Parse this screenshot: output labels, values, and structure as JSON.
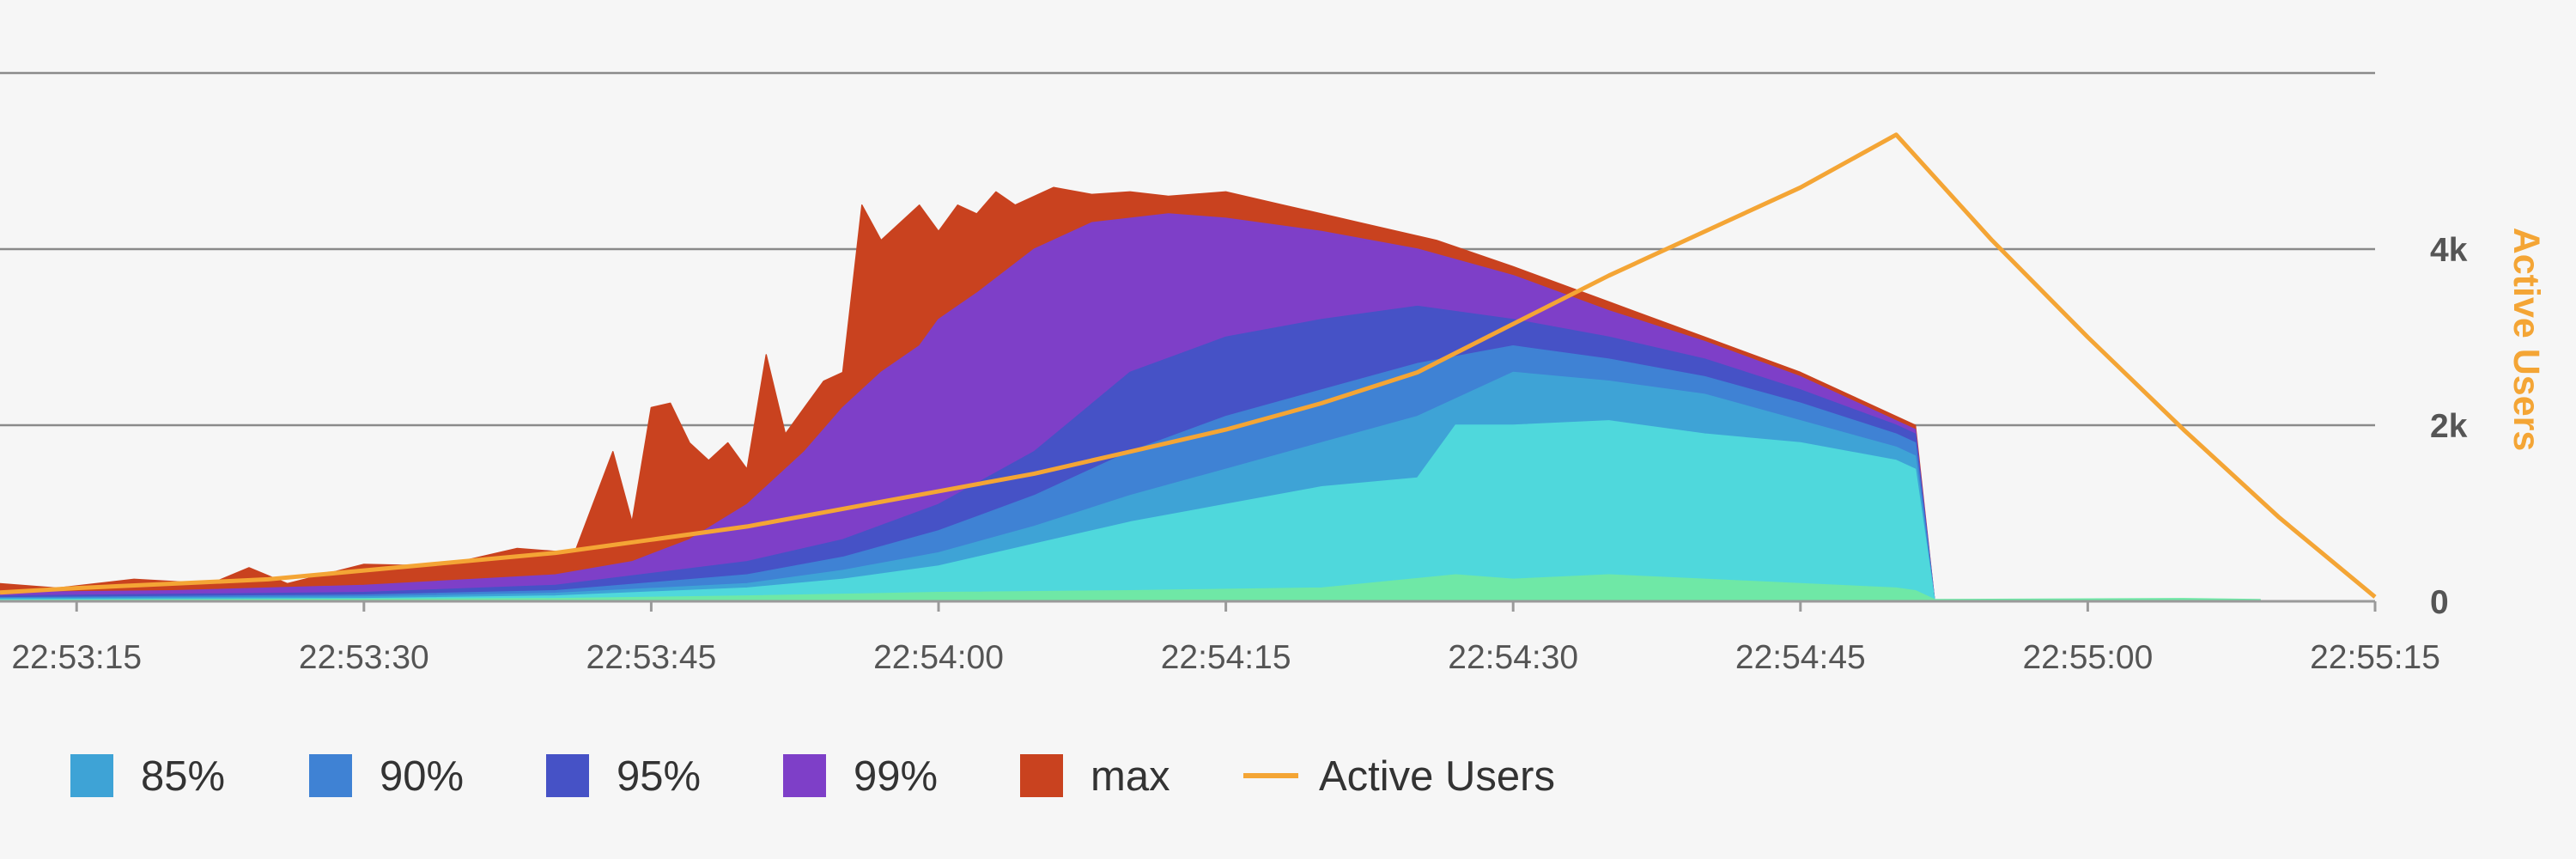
{
  "chart_data": {
    "type": "area",
    "x_ticks": [
      "22:53:15",
      "22:53:30",
      "22:53:45",
      "22:54:00",
      "22:54:15",
      "22:54:30",
      "22:54:45",
      "22:55:00",
      "22:55:15"
    ],
    "x_range": [
      "22:53:11",
      "22:55:15"
    ],
    "y_range": [
      0,
      6000
    ],
    "y_grid": [
      0,
      2000,
      4000,
      6000
    ],
    "y_right_ticks": [
      "4k",
      "2k",
      "0"
    ],
    "y_right_tick_values": [
      4000,
      2000,
      0
    ],
    "y_right_label": "Active Users",
    "grid": true,
    "legend_position": "bottom-left",
    "stacked_series_legend_order": [
      "85%",
      "90%",
      "95%",
      "99%",
      "max"
    ],
    "series": [
      {
        "name": "max",
        "kind": "area",
        "color": "#c9421f",
        "points": [
          [
            "22:53:11",
            200
          ],
          [
            "22:53:14",
            150
          ],
          [
            "22:53:18",
            250
          ],
          [
            "22:53:22",
            200
          ],
          [
            "22:53:24",
            380
          ],
          [
            "22:53:26",
            200
          ],
          [
            "22:53:30",
            420
          ],
          [
            "22:53:34",
            400
          ],
          [
            "22:53:38",
            600
          ],
          [
            "22:53:41",
            550
          ],
          [
            "22:53:43",
            1700
          ],
          [
            "22:53:44",
            900
          ],
          [
            "22:53:45",
            2200
          ],
          [
            "22:53:46",
            2250
          ],
          [
            "22:53:47",
            1800
          ],
          [
            "22:53:48",
            1600
          ],
          [
            "22:53:49",
            1800
          ],
          [
            "22:53:50",
            1500
          ],
          [
            "22:53:51",
            2800
          ],
          [
            "22:53:52",
            1900
          ],
          [
            "22:53:53",
            2200
          ],
          [
            "22:53:54",
            2500
          ],
          [
            "22:53:55",
            2600
          ],
          [
            "22:53:56",
            4500
          ],
          [
            "22:53:57",
            4100
          ],
          [
            "22:53:58",
            4300
          ],
          [
            "22:53:59",
            4500
          ],
          [
            "22:54:00",
            4200
          ],
          [
            "22:54:01",
            4500
          ],
          [
            "22:54:02",
            4400
          ],
          [
            "22:54:03",
            4650
          ],
          [
            "22:54:04",
            4500
          ],
          [
            "22:54:05",
            4600
          ],
          [
            "22:54:06",
            4700
          ],
          [
            "22:54:08",
            4620
          ],
          [
            "22:54:10",
            4650
          ],
          [
            "22:54:12",
            4600
          ],
          [
            "22:54:15",
            4650
          ],
          [
            "22:54:18",
            4500
          ],
          [
            "22:54:22",
            4300
          ],
          [
            "22:54:26",
            4100
          ],
          [
            "22:54:30",
            3800
          ],
          [
            "22:54:35",
            3400
          ],
          [
            "22:54:40",
            3000
          ],
          [
            "22:54:45",
            2600
          ],
          [
            "22:54:48",
            2300
          ],
          [
            "22:54:51",
            2000
          ],
          [
            "22:54:52",
            0
          ]
        ]
      },
      {
        "name": "99%",
        "kind": "area",
        "color": "#7e3fc8",
        "points": [
          [
            "22:53:11",
            100
          ],
          [
            "22:53:20",
            120
          ],
          [
            "22:53:30",
            180
          ],
          [
            "22:53:40",
            300
          ],
          [
            "22:53:44",
            450
          ],
          [
            "22:53:47",
            700
          ],
          [
            "22:53:50",
            1100
          ],
          [
            "22:53:53",
            1700
          ],
          [
            "22:53:55",
            2200
          ],
          [
            "22:53:57",
            2600
          ],
          [
            "22:53:59",
            2900
          ],
          [
            "22:54:00",
            3200
          ],
          [
            "22:54:02",
            3500
          ],
          [
            "22:54:05",
            4000
          ],
          [
            "22:54:08",
            4300
          ],
          [
            "22:54:12",
            4400
          ],
          [
            "22:54:15",
            4350
          ],
          [
            "22:54:20",
            4200
          ],
          [
            "22:54:25",
            4000
          ],
          [
            "22:54:30",
            3700
          ],
          [
            "22:54:35",
            3300
          ],
          [
            "22:54:40",
            2950
          ],
          [
            "22:54:45",
            2550
          ],
          [
            "22:54:50",
            2050
          ],
          [
            "22:54:51",
            1950
          ],
          [
            "22:54:52",
            0
          ]
        ]
      },
      {
        "name": "95%",
        "kind": "area",
        "color": "#4652c6",
        "points": [
          [
            "22:53:11",
            60
          ],
          [
            "22:53:30",
            100
          ],
          [
            "22:53:40",
            180
          ],
          [
            "22:53:50",
            450
          ],
          [
            "22:53:55",
            700
          ],
          [
            "22:54:00",
            1100
          ],
          [
            "22:54:05",
            1700
          ],
          [
            "22:54:10",
            2600
          ],
          [
            "22:54:15",
            3000
          ],
          [
            "22:54:20",
            3200
          ],
          [
            "22:54:25",
            3350
          ],
          [
            "22:54:30",
            3200
          ],
          [
            "22:54:35",
            3000
          ],
          [
            "22:54:40",
            2750
          ],
          [
            "22:54:45",
            2400
          ],
          [
            "22:54:50",
            2000
          ],
          [
            "22:54:51",
            1900
          ],
          [
            "22:54:52",
            0
          ]
        ]
      },
      {
        "name": "90%",
        "kind": "area",
        "color": "#3f82d4",
        "points": [
          [
            "22:53:11",
            40
          ],
          [
            "22:53:30",
            70
          ],
          [
            "22:53:40",
            120
          ],
          [
            "22:53:50",
            300
          ],
          [
            "22:53:55",
            500
          ],
          [
            "22:54:00",
            800
          ],
          [
            "22:54:05",
            1200
          ],
          [
            "22:54:10",
            1700
          ],
          [
            "22:54:15",
            2100
          ],
          [
            "22:54:20",
            2400
          ],
          [
            "22:54:25",
            2700
          ],
          [
            "22:54:30",
            2900
          ],
          [
            "22:54:35",
            2750
          ],
          [
            "22:54:40",
            2550
          ],
          [
            "22:54:45",
            2250
          ],
          [
            "22:54:50",
            1900
          ],
          [
            "22:54:51",
            1800
          ],
          [
            "22:54:52",
            0
          ]
        ]
      },
      {
        "name": "85%",
        "kind": "area",
        "color": "#3ea3d6",
        "points": [
          [
            "22:53:11",
            30
          ],
          [
            "22:53:30",
            50
          ],
          [
            "22:53:40",
            90
          ],
          [
            "22:53:50",
            200
          ],
          [
            "22:53:55",
            350
          ],
          [
            "22:54:00",
            550
          ],
          [
            "22:54:05",
            850
          ],
          [
            "22:54:10",
            1200
          ],
          [
            "22:54:15",
            1500
          ],
          [
            "22:54:20",
            1800
          ],
          [
            "22:54:25",
            2100
          ],
          [
            "22:54:30",
            2600
          ],
          [
            "22:54:35",
            2500
          ],
          [
            "22:54:40",
            2350
          ],
          [
            "22:54:45",
            2050
          ],
          [
            "22:54:50",
            1750
          ],
          [
            "22:54:51",
            1650
          ],
          [
            "22:54:52",
            0
          ]
        ]
      },
      {
        "name": "",
        "kind": "area",
        "color": "#4fd8dc",
        "points": [
          [
            "22:53:11",
            20
          ],
          [
            "22:53:30",
            30
          ],
          [
            "22:53:40",
            60
          ],
          [
            "22:53:50",
            150
          ],
          [
            "22:53:55",
            250
          ],
          [
            "22:54:00",
            400
          ],
          [
            "22:54:05",
            650
          ],
          [
            "22:54:10",
            900
          ],
          [
            "22:54:15",
            1100
          ],
          [
            "22:54:20",
            1300
          ],
          [
            "22:54:25",
            1400
          ],
          [
            "22:54:27",
            2000
          ],
          [
            "22:54:30",
            2000
          ],
          [
            "22:54:35",
            2050
          ],
          [
            "22:54:40",
            1900
          ],
          [
            "22:54:45",
            1800
          ],
          [
            "22:54:50",
            1600
          ],
          [
            "22:54:51",
            1500
          ],
          [
            "22:54:52",
            0
          ]
        ]
      },
      {
        "name": "",
        "kind": "area",
        "color": "#6fe8a6",
        "points": [
          [
            "22:53:11",
            10
          ],
          [
            "22:53:40",
            30
          ],
          [
            "22:53:50",
            60
          ],
          [
            "22:54:00",
            100
          ],
          [
            "22:54:10",
            120
          ],
          [
            "22:54:20",
            150
          ],
          [
            "22:54:27",
            300
          ],
          [
            "22:54:30",
            250
          ],
          [
            "22:54:35",
            300
          ],
          [
            "22:54:40",
            250
          ],
          [
            "22:54:45",
            200
          ],
          [
            "22:54:50",
            150
          ],
          [
            "22:54:51",
            120
          ],
          [
            "22:54:52",
            20
          ],
          [
            "22:55:05",
            30
          ],
          [
            "22:55:09",
            20
          ],
          [
            "22:55:09",
            0
          ]
        ]
      },
      {
        "name": "Active Users",
        "kind": "line",
        "axis": "right",
        "color": "#f4a535",
        "points": [
          [
            "22:53:11",
            100
          ],
          [
            "22:53:15",
            150
          ],
          [
            "22:53:20",
            200
          ],
          [
            "22:53:25",
            250
          ],
          [
            "22:53:30",
            350
          ],
          [
            "22:53:35",
            450
          ],
          [
            "22:53:40",
            550
          ],
          [
            "22:53:45",
            700
          ],
          [
            "22:53:50",
            850
          ],
          [
            "22:53:55",
            1050
          ],
          [
            "22:54:00",
            1250
          ],
          [
            "22:54:05",
            1450
          ],
          [
            "22:54:10",
            1700
          ],
          [
            "22:54:15",
            1950
          ],
          [
            "22:54:20",
            2250
          ],
          [
            "22:54:25",
            2600
          ],
          [
            "22:54:30",
            3150
          ],
          [
            "22:54:35",
            3700
          ],
          [
            "22:54:40",
            4200
          ],
          [
            "22:54:45",
            4700
          ],
          [
            "22:54:50",
            5300
          ],
          [
            "22:54:55",
            4100
          ],
          [
            "22:55:00",
            3000
          ],
          [
            "22:55:05",
            1950
          ],
          [
            "22:55:10",
            950
          ],
          [
            "22:55:15",
            50
          ]
        ]
      }
    ]
  },
  "legend": [
    {
      "label": "85%",
      "color": "#3ea3d6",
      "kind": "swatch"
    },
    {
      "label": "90%",
      "color": "#3f82d4",
      "kind": "swatch"
    },
    {
      "label": "95%",
      "color": "#4652c6",
      "kind": "swatch"
    },
    {
      "label": "99%",
      "color": "#7e3fc8",
      "kind": "swatch"
    },
    {
      "label": "max",
      "color": "#c9421f",
      "kind": "swatch"
    },
    {
      "label": "Active Users",
      "color": "#f4a535",
      "kind": "line"
    }
  ]
}
